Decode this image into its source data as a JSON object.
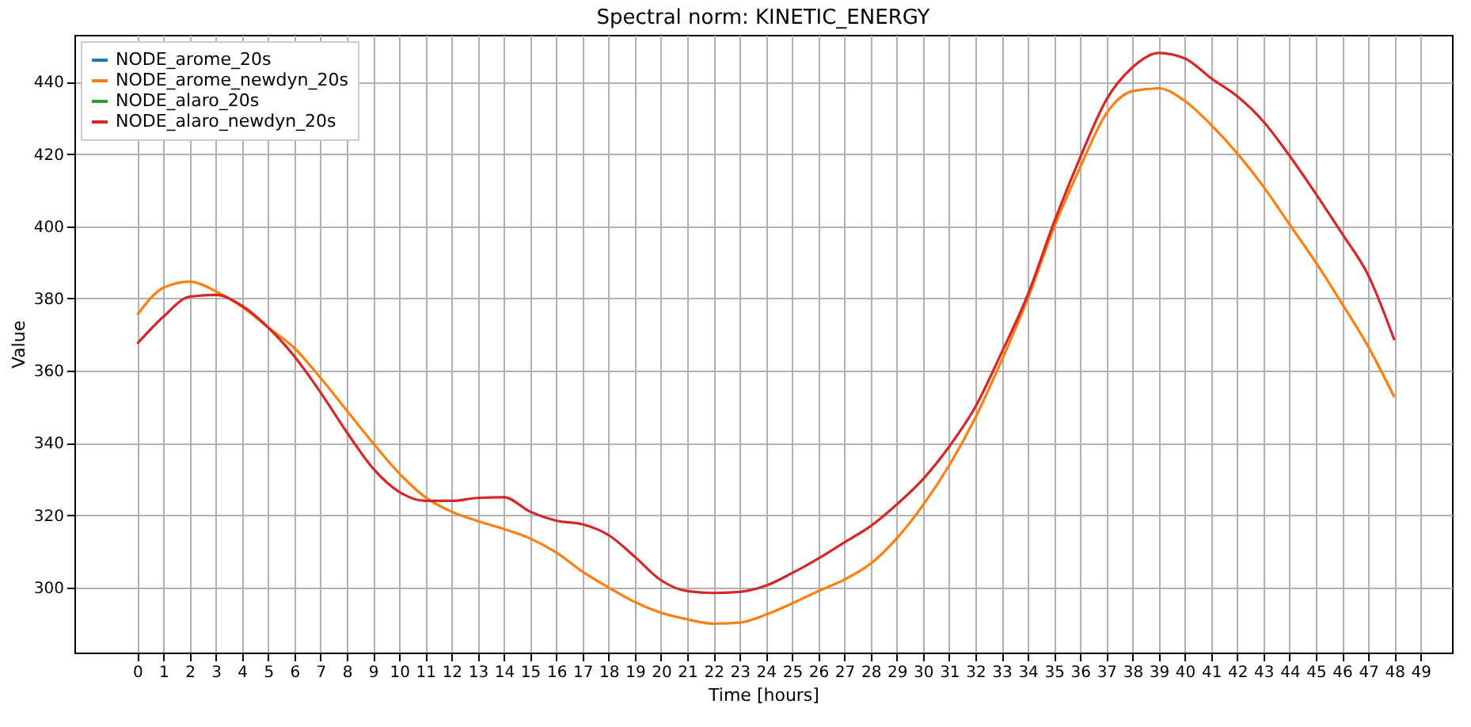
{
  "chart_data": {
    "type": "line",
    "title": "Spectral norm: KINETIC_ENERGY",
    "xlabel": "Time [hours]",
    "ylabel": "Value",
    "x": [
      0,
      1,
      2,
      3,
      4,
      5,
      6,
      7,
      8,
      9,
      10,
      11,
      12,
      13,
      14,
      15,
      16,
      17,
      18,
      19,
      20,
      21,
      22,
      23,
      24,
      25,
      26,
      27,
      28,
      29,
      30,
      31,
      32,
      33,
      34,
      35,
      36,
      37,
      38,
      39,
      40,
      41,
      42,
      43,
      44,
      45,
      46,
      47,
      48
    ],
    "series": [
      {
        "name": "NODE_arome_20s",
        "color": "#1f77b4",
        "values": [
          null,
          null,
          null,
          null,
          null,
          null,
          null,
          null,
          null,
          null,
          null,
          null,
          null,
          null,
          null,
          null,
          null,
          null,
          null,
          null,
          null,
          null,
          null,
          null,
          null,
          null,
          null,
          null,
          null,
          null,
          null,
          null,
          null,
          null,
          null,
          null,
          null,
          null,
          null,
          null,
          null,
          null,
          null,
          null,
          null,
          null,
          null,
          null,
          null
        ]
      },
      {
        "name": "NODE_arome_newdyn_20s",
        "color": "#ff7f0e",
        "values": [
          375.5,
          383,
          384.7,
          382,
          377.7,
          372,
          366.3,
          358,
          349,
          340,
          331.6,
          325,
          321,
          318.4,
          316.2,
          313.6,
          309.7,
          304.4,
          300,
          296,
          293,
          291.2,
          290,
          290.3,
          292.5,
          295.6,
          299,
          302.2,
          306.6,
          313.6,
          322.8,
          333.8,
          347,
          362.8,
          379.9,
          399.6,
          416.3,
          431.2,
          437.4,
          438.2,
          434.7,
          428.1,
          420.2,
          411,
          400.5,
          390,
          378.6,
          366.7,
          352.7
        ]
      },
      {
        "name": "NODE_alaro_20s",
        "color": "#2ca02c",
        "values": [
          null,
          null,
          null,
          null,
          null,
          null,
          null,
          null,
          null,
          null,
          null,
          null,
          null,
          null,
          null,
          null,
          null,
          null,
          null,
          null,
          null,
          null,
          null,
          null,
          null,
          null,
          null,
          null,
          null,
          null,
          null,
          null,
          null,
          null,
          null,
          null,
          null,
          null,
          null,
          null,
          null,
          null,
          null,
          null,
          null,
          null,
          null,
          null,
          null
        ]
      },
      {
        "name": "NODE_alaro_newdyn_20s",
        "color": "#d62728",
        "values": [
          367.5,
          375,
          380.5,
          381,
          378,
          372,
          364,
          354,
          343,
          333,
          326.5,
          324,
          324,
          324.8,
          325,
          321,
          318.5,
          317.5,
          314.5,
          308.5,
          302,
          299,
          298.5,
          298.8,
          300.5,
          304,
          308,
          312.5,
          317,
          323,
          330,
          339,
          350,
          365,
          381,
          401,
          419,
          435,
          444,
          448,
          446.5,
          441,
          436,
          429,
          419.5,
          409,
          398,
          386.5,
          368.5
        ]
      }
    ],
    "xlim": [
      -2.4,
      50.2
    ],
    "xticks": [
      0,
      1,
      2,
      3,
      4,
      5,
      6,
      7,
      8,
      9,
      10,
      11,
      12,
      13,
      14,
      15,
      16,
      17,
      18,
      19,
      20,
      21,
      22,
      23,
      24,
      25,
      26,
      27,
      28,
      29,
      30,
      31,
      32,
      33,
      34,
      35,
      36,
      37,
      38,
      39,
      40,
      41,
      42,
      43,
      44,
      45,
      46,
      47,
      48,
      49
    ],
    "ylim": [
      282,
      453
    ],
    "yticks": [
      300,
      320,
      340,
      360,
      380,
      400,
      420,
      440
    ],
    "grid": true,
    "legend": "top left",
    "line_style": "solid",
    "marker": "none"
  }
}
